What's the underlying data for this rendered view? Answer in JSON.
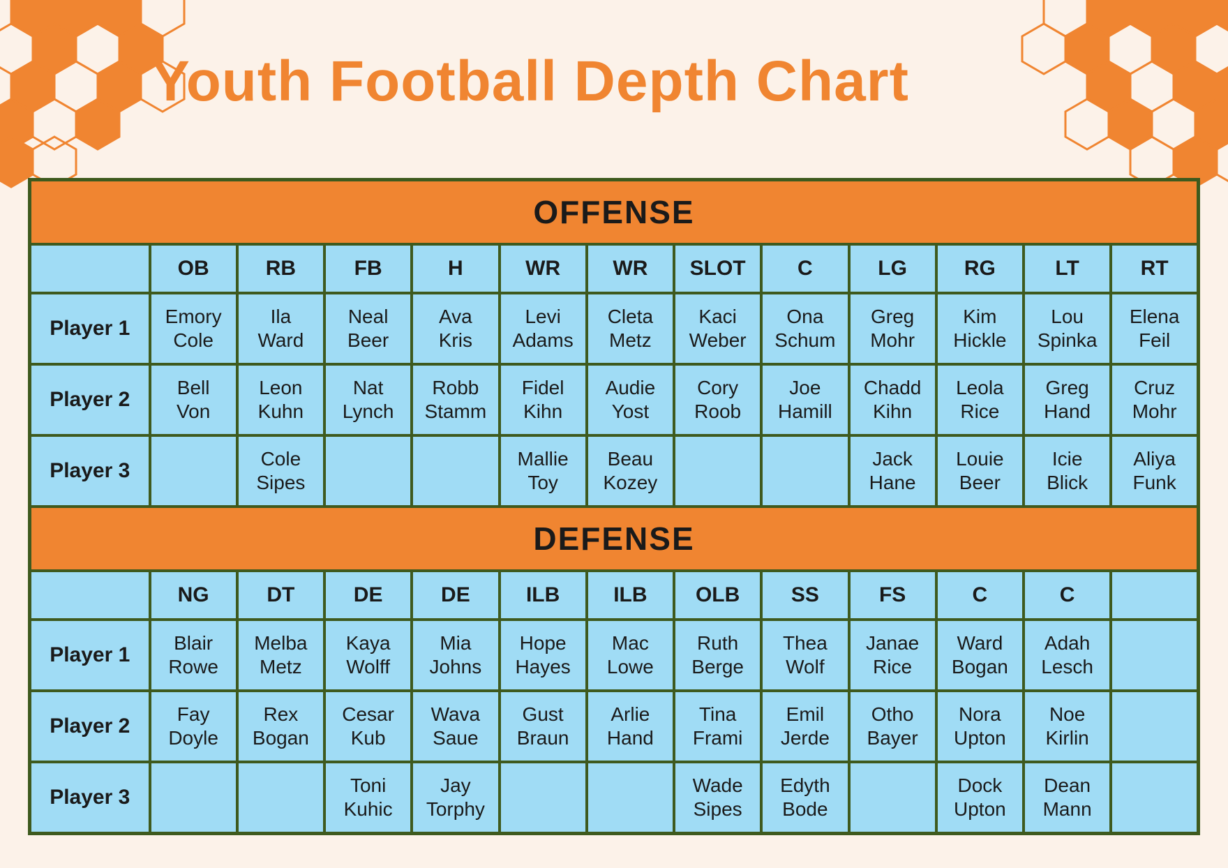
{
  "title": "Youth Football Depth Chart",
  "colors": {
    "accent_orange": "#F08531",
    "cell_blue": "#A0DCF5",
    "border_green": "#3E5A1E",
    "background_cream": "#FCF2E9",
    "band_text": "#FFFFFF",
    "cell_text": "#1A1A1A"
  },
  "offense": {
    "section_label": "OFFENSE",
    "positions": [
      "OB",
      "RB",
      "FB",
      "H",
      "WR",
      "WR",
      "SLOT",
      "C",
      "LG",
      "RG",
      "LT",
      "RT"
    ],
    "rows": [
      {
        "label": "Player 1",
        "players": [
          "Emory Cole",
          "Ila Ward",
          "Neal Beer",
          "Ava Kris",
          "Levi Adams",
          "Cleta Metz",
          "Kaci Weber",
          "Ona Schum",
          "Greg Mohr",
          "Kim Hickle",
          "Lou Spinka",
          "Elena Feil"
        ]
      },
      {
        "label": "Player 2",
        "players": [
          "Bell Von",
          "Leon Kuhn",
          "Nat Lynch",
          "Robb Stamm",
          "Fidel Kihn",
          "Audie Yost",
          "Cory Roob",
          "Joe Hamill",
          "Chadd Kihn",
          "Leola Rice",
          "Greg Hand",
          "Cruz Mohr"
        ]
      },
      {
        "label": "Player 3",
        "players": [
          "",
          "Cole Sipes",
          "",
          "",
          "Mallie Toy",
          "Beau Kozey",
          "",
          "",
          "Jack Hane",
          "Louie Beer",
          "Icie Blick",
          "Aliya Funk"
        ]
      }
    ]
  },
  "defense": {
    "section_label": "DEFENSE",
    "positions": [
      "NG",
      "DT",
      "DE",
      "DE",
      "ILB",
      "ILB",
      "OLB",
      "SS",
      "FS",
      "C",
      "C",
      ""
    ],
    "rows": [
      {
        "label": "Player 1",
        "players": [
          "Blair Rowe",
          "Melba Metz",
          "Kaya Wolff",
          "Mia Johns",
          "Hope Hayes",
          "Mac Lowe",
          "Ruth Berge",
          "Thea Wolf",
          "Janae Rice",
          "Ward Bogan",
          "Adah Lesch",
          ""
        ]
      },
      {
        "label": "Player 2",
        "players": [
          "Fay Doyle",
          "Rex Bogan",
          "Cesar Kub",
          "Wava Saue",
          "Gust Braun",
          "Arlie Hand",
          "Tina Frami",
          "Emil Jerde",
          "Otho Bayer",
          "Nora Upton",
          "Noe Kirlin",
          ""
        ]
      },
      {
        "label": "Player 3",
        "players": [
          "",
          "",
          "Toni Kuhic",
          "Jay Torphy",
          "",
          "",
          "Wade Sipes",
          "Edyth Bode",
          "",
          "Dock Upton",
          "Dean Mann",
          ""
        ]
      }
    ]
  }
}
